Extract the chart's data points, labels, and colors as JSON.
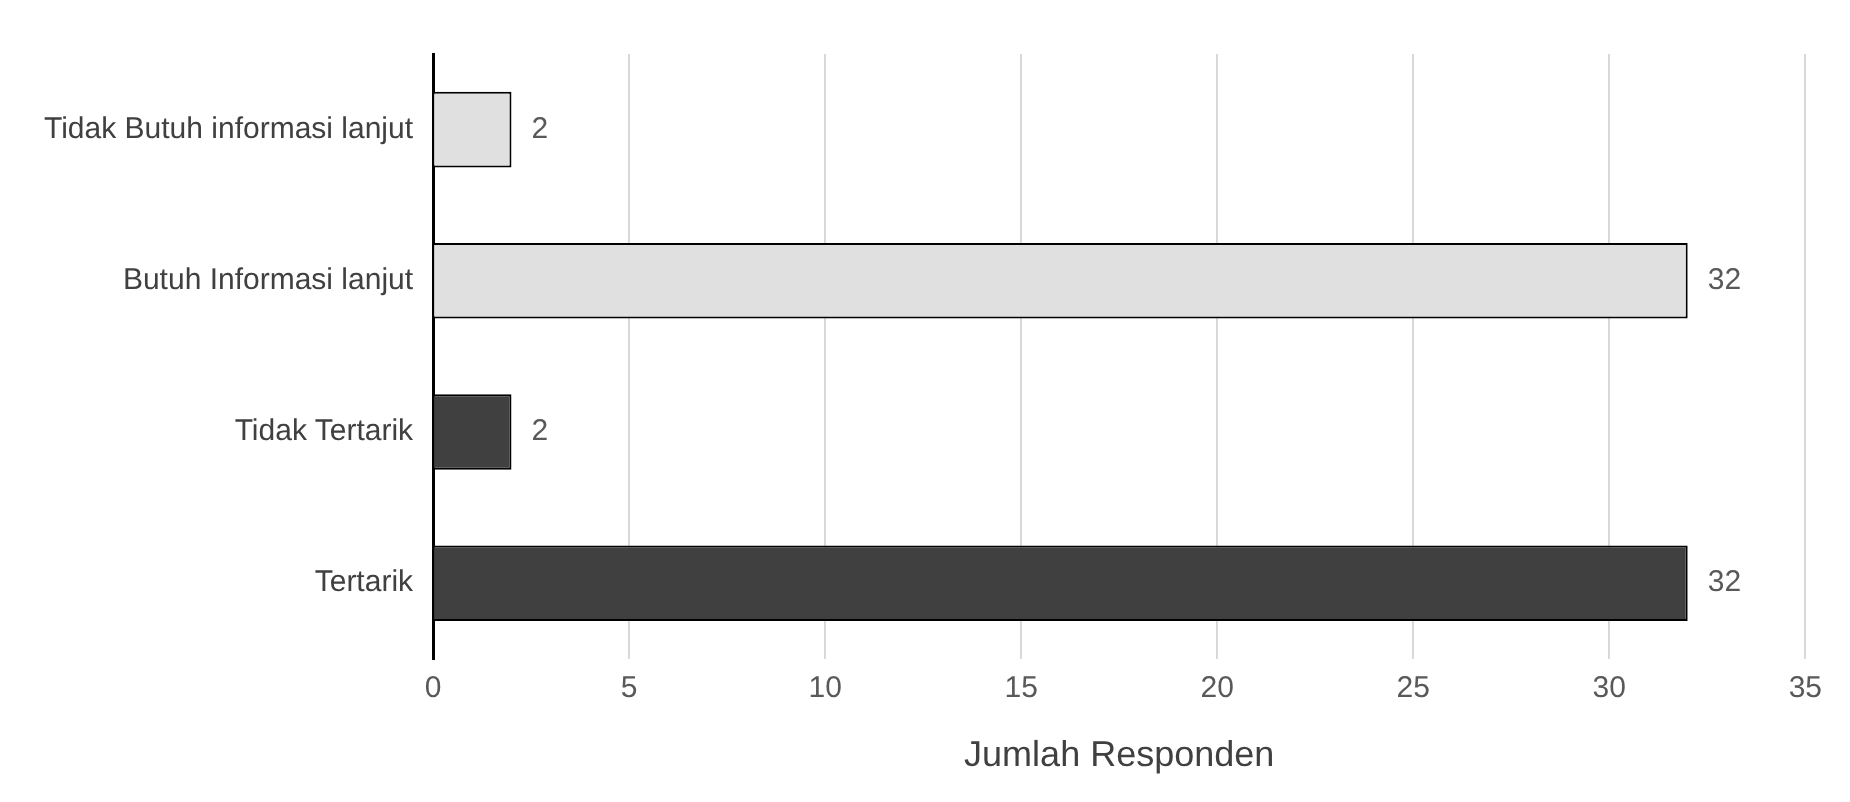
{
  "chart_data": {
    "type": "bar",
    "orientation": "horizontal",
    "xlabel": "Jumlah Responden",
    "categories": [
      "Tidak Butuh informasi lanjut",
      "Butuh Informasi lanjut",
      "Tidak Tertarik",
      "Tertarik"
    ],
    "values": [
      2,
      32,
      2,
      32
    ],
    "colors": [
      "#e0e0e0",
      "#e0e0e0",
      "#404040",
      "#404040"
    ],
    "xlim": [
      0,
      35
    ],
    "xticks": [
      0,
      5,
      10,
      15,
      20,
      25,
      30,
      35
    ],
    "grid": "x",
    "data_labels": true
  }
}
